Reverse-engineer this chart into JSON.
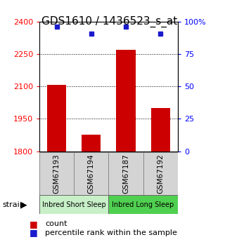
{
  "title": "GDS1610 / 1436523_s_at",
  "samples": [
    "GSM67193",
    "GSM67194",
    "GSM67187",
    "GSM67192"
  ],
  "group_labels": [
    "Inbred Short Sleep",
    "Inbred Long Sleep"
  ],
  "bar_values": [
    2106,
    1878,
    2270,
    2000
  ],
  "dot_values": [
    96,
    91,
    96,
    91
  ],
  "ylim_left": [
    1800,
    2400
  ],
  "ylim_right": [
    0,
    100
  ],
  "yticks_left": [
    1800,
    1950,
    2100,
    2250,
    2400
  ],
  "yticks_right": [
    0,
    25,
    50,
    75,
    100
  ],
  "ytick_labels_right": [
    "0",
    "25",
    "50",
    "75",
    "100%"
  ],
  "dotted_gridlines": [
    1950,
    2100,
    2250
  ],
  "bar_color": "#cc0000",
  "dot_color": "#1a1acc",
  "sample_box_color": "#d4d4d4",
  "group_colors": [
    "#c8f0c8",
    "#50d050"
  ],
  "title_fontsize": 11,
  "tick_fontsize": 8,
  "bar_width": 0.55,
  "dot_size": 40,
  "legend_label_count": "count",
  "legend_label_pct": "percentile rank within the sample"
}
